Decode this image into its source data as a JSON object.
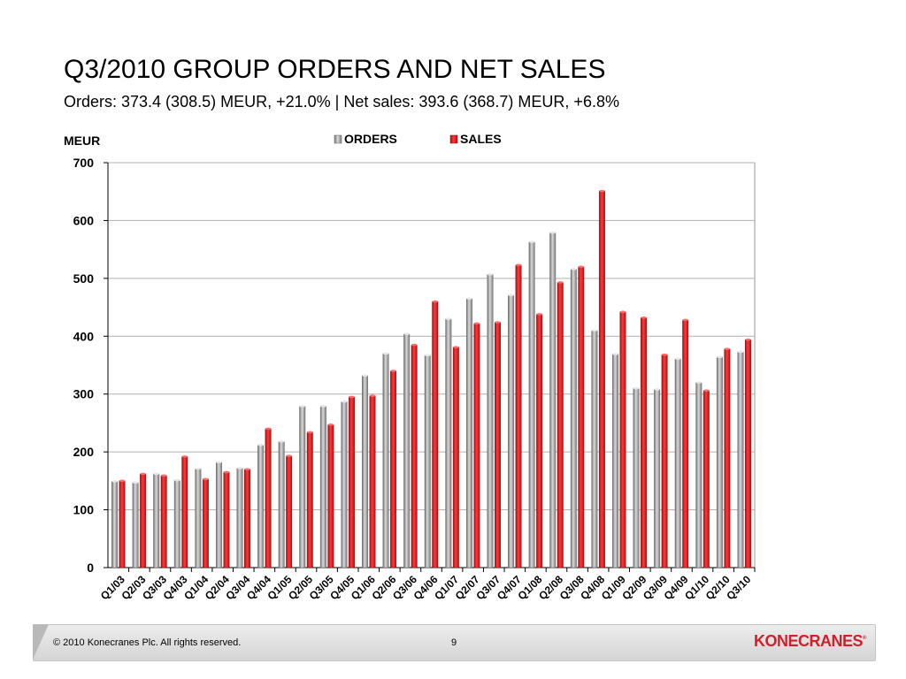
{
  "slide": {
    "title": "Q3/2010 GROUP ORDERS AND NET SALES",
    "subtitle": "Orders: 373.4 (308.5) MEUR, +21.0% | Net sales: 393.6 (368.7) MEUR, +6.8%"
  },
  "footer": {
    "copyright": "© 2010 Konecranes Plc. All rights reserved.",
    "page_number": "9",
    "logo_text": "KONECRANES",
    "logo_mark": "®"
  },
  "colors": {
    "orders": "#9a9a9a",
    "sales": "#e0191d",
    "gridline": "#b0b0b0",
    "brand": "#d21f2a"
  },
  "chart_data": {
    "type": "bar",
    "ylabel": "MEUR",
    "ylim": [
      0,
      700
    ],
    "yticks": [
      0,
      100,
      200,
      300,
      400,
      500,
      600,
      700
    ],
    "grid": true,
    "legend_position": "top",
    "categories": [
      "Q1/03",
      "Q2/03",
      "Q3/03",
      "Q4/03",
      "Q1/04",
      "Q2/04",
      "Q3/04",
      "Q4/04",
      "Q1/05",
      "Q2/05",
      "Q3/05",
      "Q4/05",
      "Q1/06",
      "Q2/06",
      "Q3/06",
      "Q4/06",
      "Q1/07",
      "Q2/07",
      "Q3/07",
      "Q4/07",
      "Q1/08",
      "Q2/08",
      "Q3/08",
      "Q4/08",
      "Q1/09",
      "Q2/09",
      "Q3/09",
      "Q4/09",
      "Q1/10",
      "Q2/10",
      "Q3/10"
    ],
    "series": [
      {
        "name": "ORDERS",
        "color": "#9a9a9a",
        "values": [
          149,
          147,
          162,
          151,
          171,
          182,
          172,
          212,
          218,
          279,
          279,
          287,
          332,
          370,
          404,
          367,
          430,
          465,
          507,
          471,
          563,
          579,
          516,
          410,
          369,
          310,
          308,
          361,
          320,
          364,
          373
        ]
      },
      {
        "name": "SALES",
        "color": "#e0191d",
        "values": [
          150,
          162,
          159,
          192,
          153,
          165,
          170,
          240,
          193,
          234,
          247,
          295,
          297,
          340,
          385,
          460,
          381,
          422,
          424,
          523,
          438,
          493,
          520,
          651,
          442,
          432,
          368,
          428,
          306,
          378,
          394
        ]
      }
    ]
  }
}
